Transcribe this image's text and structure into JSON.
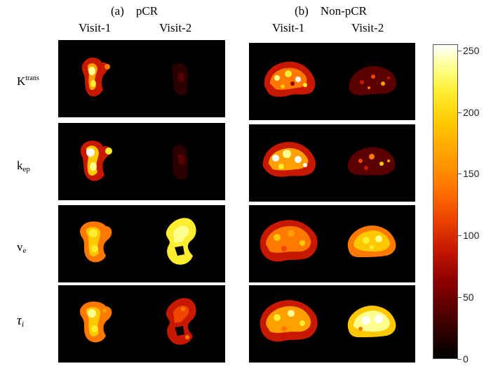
{
  "groups": [
    {
      "label": "(a)",
      "name": "pCR"
    },
    {
      "label": "(b)",
      "name": "Non-pCR"
    }
  ],
  "visits": [
    "Visit-1",
    "Visit-2"
  ],
  "rows": [
    {
      "symbol": "K",
      "sup": "trans",
      "sub": ""
    },
    {
      "symbol": "k",
      "sup": "",
      "sub": "ep"
    },
    {
      "symbol": "v",
      "sup": "",
      "sub": "e"
    },
    {
      "symbol": "τ",
      "sup": "",
      "sub": "i"
    }
  ],
  "colorbar": {
    "ticks": [
      "0",
      "50",
      "100",
      "150",
      "200",
      "250"
    ],
    "range": [
      0,
      255
    ],
    "colormap": "hot",
    "colors": [
      "#000000",
      "#8e0000",
      "#f04600",
      "#ffa000",
      "#ffee30",
      "#ffffff"
    ]
  }
}
